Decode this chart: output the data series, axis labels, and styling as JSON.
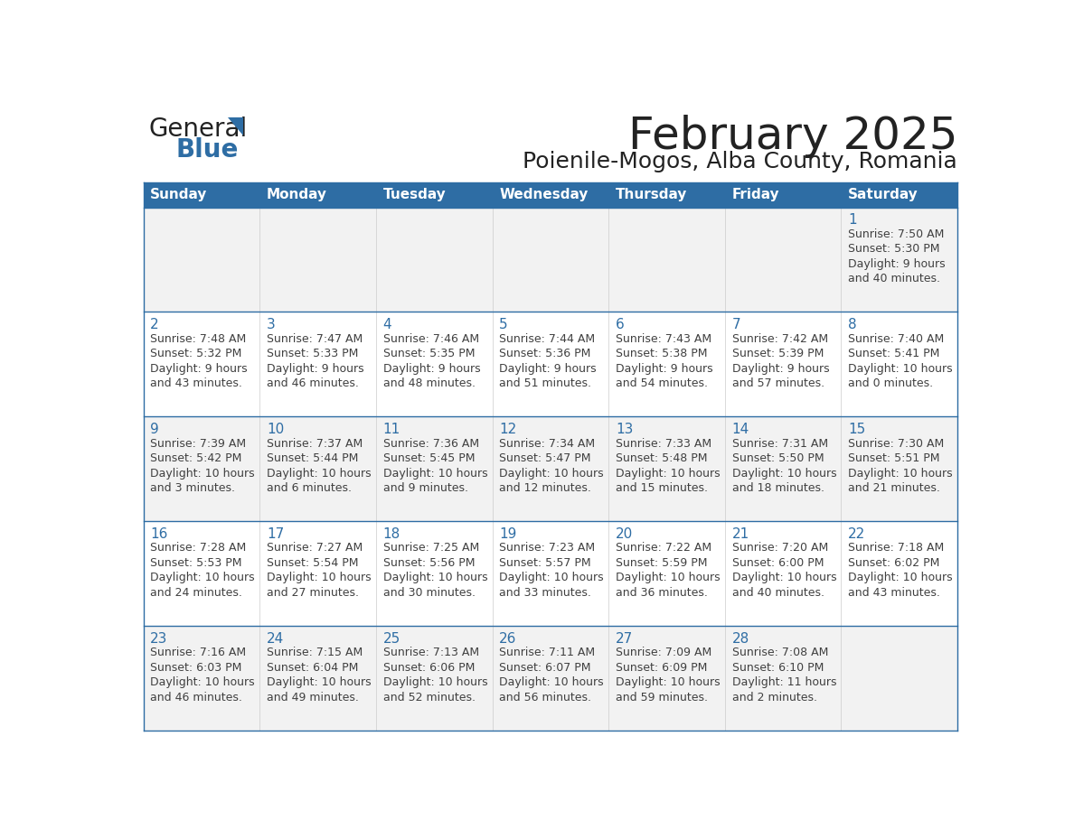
{
  "title": "February 2025",
  "subtitle": "Poienile-Mogos, Alba County, Romania",
  "header_bg": "#2E6DA4",
  "header_text": "#FFFFFF",
  "cell_bg_odd": "#F2F2F2",
  "cell_bg_even": "#FFFFFF",
  "day_number_color": "#2E6DA4",
  "info_text_color": "#404040",
  "border_color": "#2E6DA4",
  "grid_line_color": "#CCCCCC",
  "days_of_week": [
    "Sunday",
    "Monday",
    "Tuesday",
    "Wednesday",
    "Thursday",
    "Friday",
    "Saturday"
  ],
  "weeks": [
    [
      {
        "day": null,
        "info": ""
      },
      {
        "day": null,
        "info": ""
      },
      {
        "day": null,
        "info": ""
      },
      {
        "day": null,
        "info": ""
      },
      {
        "day": null,
        "info": ""
      },
      {
        "day": null,
        "info": ""
      },
      {
        "day": 1,
        "info": "Sunrise: 7:50 AM\nSunset: 5:30 PM\nDaylight: 9 hours\nand 40 minutes."
      }
    ],
    [
      {
        "day": 2,
        "info": "Sunrise: 7:48 AM\nSunset: 5:32 PM\nDaylight: 9 hours\nand 43 minutes."
      },
      {
        "day": 3,
        "info": "Sunrise: 7:47 AM\nSunset: 5:33 PM\nDaylight: 9 hours\nand 46 minutes."
      },
      {
        "day": 4,
        "info": "Sunrise: 7:46 AM\nSunset: 5:35 PM\nDaylight: 9 hours\nand 48 minutes."
      },
      {
        "day": 5,
        "info": "Sunrise: 7:44 AM\nSunset: 5:36 PM\nDaylight: 9 hours\nand 51 minutes."
      },
      {
        "day": 6,
        "info": "Sunrise: 7:43 AM\nSunset: 5:38 PM\nDaylight: 9 hours\nand 54 minutes."
      },
      {
        "day": 7,
        "info": "Sunrise: 7:42 AM\nSunset: 5:39 PM\nDaylight: 9 hours\nand 57 minutes."
      },
      {
        "day": 8,
        "info": "Sunrise: 7:40 AM\nSunset: 5:41 PM\nDaylight: 10 hours\nand 0 minutes."
      }
    ],
    [
      {
        "day": 9,
        "info": "Sunrise: 7:39 AM\nSunset: 5:42 PM\nDaylight: 10 hours\nand 3 minutes."
      },
      {
        "day": 10,
        "info": "Sunrise: 7:37 AM\nSunset: 5:44 PM\nDaylight: 10 hours\nand 6 minutes."
      },
      {
        "day": 11,
        "info": "Sunrise: 7:36 AM\nSunset: 5:45 PM\nDaylight: 10 hours\nand 9 minutes."
      },
      {
        "day": 12,
        "info": "Sunrise: 7:34 AM\nSunset: 5:47 PM\nDaylight: 10 hours\nand 12 minutes."
      },
      {
        "day": 13,
        "info": "Sunrise: 7:33 AM\nSunset: 5:48 PM\nDaylight: 10 hours\nand 15 minutes."
      },
      {
        "day": 14,
        "info": "Sunrise: 7:31 AM\nSunset: 5:50 PM\nDaylight: 10 hours\nand 18 minutes."
      },
      {
        "day": 15,
        "info": "Sunrise: 7:30 AM\nSunset: 5:51 PM\nDaylight: 10 hours\nand 21 minutes."
      }
    ],
    [
      {
        "day": 16,
        "info": "Sunrise: 7:28 AM\nSunset: 5:53 PM\nDaylight: 10 hours\nand 24 minutes."
      },
      {
        "day": 17,
        "info": "Sunrise: 7:27 AM\nSunset: 5:54 PM\nDaylight: 10 hours\nand 27 minutes."
      },
      {
        "day": 18,
        "info": "Sunrise: 7:25 AM\nSunset: 5:56 PM\nDaylight: 10 hours\nand 30 minutes."
      },
      {
        "day": 19,
        "info": "Sunrise: 7:23 AM\nSunset: 5:57 PM\nDaylight: 10 hours\nand 33 minutes."
      },
      {
        "day": 20,
        "info": "Sunrise: 7:22 AM\nSunset: 5:59 PM\nDaylight: 10 hours\nand 36 minutes."
      },
      {
        "day": 21,
        "info": "Sunrise: 7:20 AM\nSunset: 6:00 PM\nDaylight: 10 hours\nand 40 minutes."
      },
      {
        "day": 22,
        "info": "Sunrise: 7:18 AM\nSunset: 6:02 PM\nDaylight: 10 hours\nand 43 minutes."
      }
    ],
    [
      {
        "day": 23,
        "info": "Sunrise: 7:16 AM\nSunset: 6:03 PM\nDaylight: 10 hours\nand 46 minutes."
      },
      {
        "day": 24,
        "info": "Sunrise: 7:15 AM\nSunset: 6:04 PM\nDaylight: 10 hours\nand 49 minutes."
      },
      {
        "day": 25,
        "info": "Sunrise: 7:13 AM\nSunset: 6:06 PM\nDaylight: 10 hours\nand 52 minutes."
      },
      {
        "day": 26,
        "info": "Sunrise: 7:11 AM\nSunset: 6:07 PM\nDaylight: 10 hours\nand 56 minutes."
      },
      {
        "day": 27,
        "info": "Sunrise: 7:09 AM\nSunset: 6:09 PM\nDaylight: 10 hours\nand 59 minutes."
      },
      {
        "day": 28,
        "info": "Sunrise: 7:08 AM\nSunset: 6:10 PM\nDaylight: 11 hours\nand 2 minutes."
      },
      {
        "day": null,
        "info": ""
      }
    ]
  ],
  "logo_general_color": "#222222",
  "logo_blue_color": "#2E6DA4",
  "logo_triangle_color": "#2E6DA4",
  "title_fontsize": 36,
  "subtitle_fontsize": 18,
  "header_fontsize": 11,
  "day_num_fontsize": 11,
  "info_fontsize": 9
}
